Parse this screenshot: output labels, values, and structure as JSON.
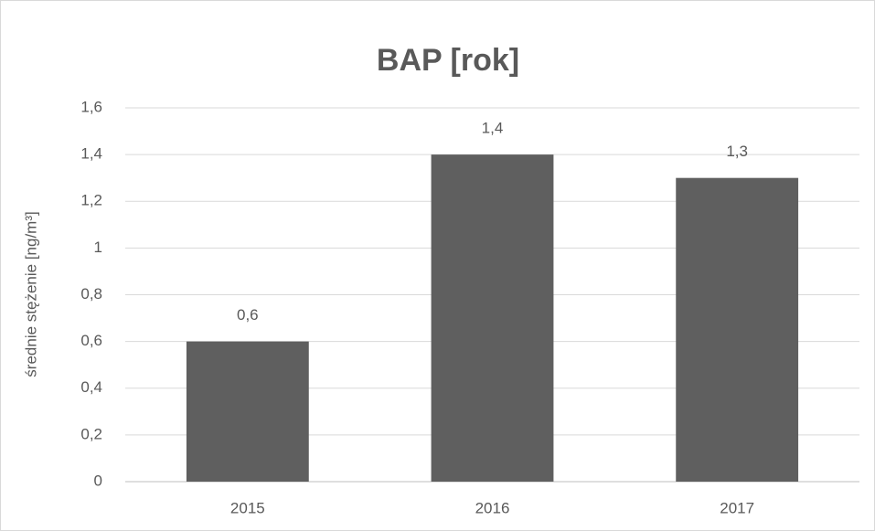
{
  "chart_data": {
    "type": "bar",
    "title": "BAP [rok]",
    "y_label": "średnie stężenie [ng/m³]",
    "categories": [
      "2015",
      "2016",
      "2017"
    ],
    "values": [
      0.6,
      1.4,
      1.3
    ],
    "value_labels": [
      "0,6",
      "1,4",
      "1,3"
    ],
    "color": "#5f5f5f",
    "ylim": [
      0,
      1.6
    ],
    "yticks": [
      0,
      {
        "value": 0.2,
        "label": "0,2"
      },
      {
        "value": 0.4,
        "label": "0,4"
      },
      {
        "value": 0.6,
        "label": "0,6"
      },
      {
        "value": 0.8,
        "label": "0,8"
      },
      1,
      {
        "value": 1.2,
        "label": "1,2"
      },
      {
        "value": 1.4,
        "label": "1,4"
      },
      {
        "value": 1.6,
        "label": "1,6"
      }
    ],
    "grid": true
  }
}
